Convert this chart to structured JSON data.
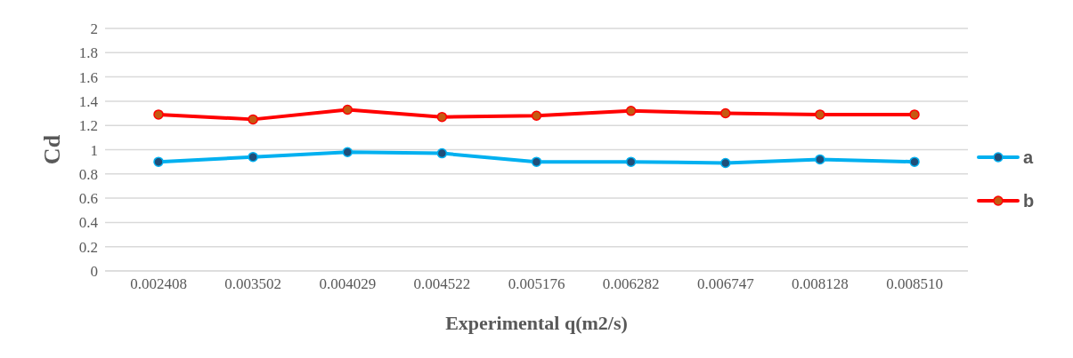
{
  "chart_data": {
    "type": "line",
    "xlabel": "Experimental q(m2/s)",
    "ylabel": "Cd",
    "categories": [
      "0.002408",
      "0.003502",
      "0.004029",
      "0.004522",
      "0.005176",
      "0.006282",
      "0.006747",
      "0.008128",
      "0.008510"
    ],
    "series": [
      {
        "name": "a",
        "color": "#00b0f0",
        "values": [
          0.9,
          0.94,
          0.98,
          0.97,
          0.9,
          0.9,
          0.89,
          0.92,
          0.9
        ]
      },
      {
        "name": "b",
        "color": "#ff0000",
        "values": [
          1.29,
          1.25,
          1.33,
          1.27,
          1.28,
          1.32,
          1.3,
          1.29,
          1.29
        ]
      }
    ],
    "ylim": [
      0,
      2
    ],
    "yticks": [
      0,
      0.2,
      0.4,
      0.6,
      0.8,
      1,
      1.2,
      1.4,
      1.6,
      1.8,
      2
    ],
    "grid": "y",
    "legend": "right",
    "marker": "circle",
    "line_style": "solid"
  }
}
